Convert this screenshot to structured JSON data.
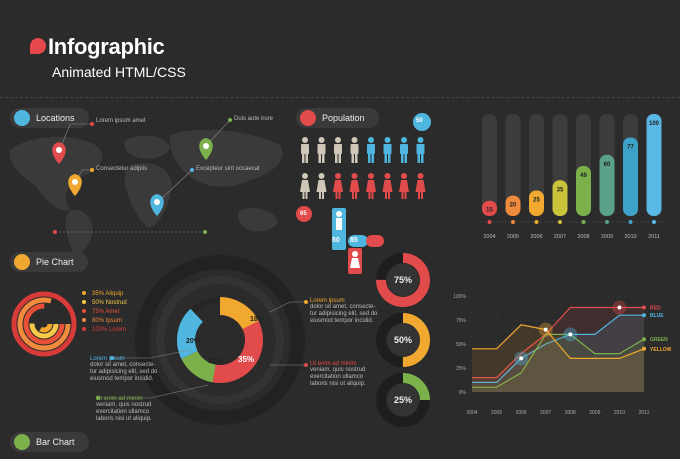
{
  "header": {
    "title": "Infographic",
    "subtitle": "Animated HTML/CSS"
  },
  "sections": {
    "locations": "Locations",
    "population": "Population",
    "pie_chart": "Pie Chart",
    "bar_chart": "Bar Chart"
  },
  "locations": {
    "loc1": "Lorem ipsum amet",
    "loc2": "Duis aute irure",
    "loc3": "Consectetur adipiis",
    "loc4": "Excepteur sint occaecat"
  },
  "population": {
    "badge_top": "50",
    "badge_left": "65",
    "male_pct": "50",
    "female_pct": "85"
  },
  "pie_legend": [
    {
      "label": "35% Aliquip",
      "color": "#f4a62a"
    },
    {
      "label": "50% Nostrud",
      "color": "#f7c948"
    },
    {
      "label": "75% Amet",
      "color": "#e8503a"
    },
    {
      "label": "80% Ipsum",
      "color": "#f08a3c"
    },
    {
      "label": "100% Lorem",
      "color": "#d83a3a"
    }
  ],
  "donut": {
    "seg_yellow": "18%",
    "seg_red": "35%",
    "seg_green": "15%",
    "seg_blue": "20%",
    "ann_top": {
      "head": "Lorem ipsum",
      "body": [
        "dolor sit amet, consecte-",
        "tur adipisicing elit, sed do",
        "eiusmod tempor incidid."
      ]
    },
    "ann_left": {
      "head": "Lorem ipsum",
      "body": [
        "dolor sit amet, consecte-",
        "tur adipisicing elit, sed do",
        "eiusmod tempor incidid."
      ]
    },
    "ann_right": {
      "head": "Ut enim ad minim",
      "body": [
        "veniam, quis nostrud",
        "exercitation ullamco",
        "laboris nisi ut aliquip."
      ]
    },
    "ann_bottom": {
      "head": "Ut enim ad minim",
      "body": [
        "veniam, quis nostrud",
        "exercitation ullamco",
        "laboris nisi ut aliquip."
      ]
    }
  },
  "rings": [
    {
      "value": 75,
      "label": "75%",
      "color": "#e24b4b"
    },
    {
      "value": 50,
      "label": "50%",
      "color": "#f0a830"
    },
    {
      "value": 25,
      "label": "25%",
      "color": "#7bb04a"
    }
  ],
  "chart_data": [
    {
      "type": "bar",
      "categories": [
        "2004",
        "2005",
        "2006",
        "2007",
        "2008",
        "2009",
        "2010",
        "2011"
      ],
      "values": [
        15,
        20,
        25,
        35,
        49,
        60,
        77,
        100
      ],
      "ylim": [
        0,
        100
      ],
      "colors": [
        "#e24b4b",
        "#f08a3c",
        "#f0a830",
        "#c9c43a",
        "#7bb04a",
        "#5aa08a",
        "#3ea2c8",
        "#5ab8e6"
      ]
    },
    {
      "type": "line",
      "x": [
        "2004",
        "2005",
        "2006",
        "2007",
        "2008",
        "2009",
        "2010",
        "2011"
      ],
      "yticks": [
        "0%",
        "25%",
        "50%",
        "75%",
        "100%"
      ],
      "ylim": [
        0,
        100
      ],
      "series": [
        {
          "name": "RED",
          "color": "#e24b4b",
          "values": [
            15,
            15,
            40,
            60,
            88,
            88,
            88,
            88
          ]
        },
        {
          "name": "BLUE",
          "color": "#4fb6e0",
          "values": [
            10,
            10,
            35,
            50,
            60,
            60,
            80,
            80
          ]
        },
        {
          "name": "GREEN",
          "color": "#7bb04a",
          "values": [
            5,
            5,
            20,
            60,
            60,
            40,
            40,
            55
          ]
        },
        {
          "name": "YELLOW",
          "color": "#f0a830",
          "values": [
            45,
            45,
            70,
            65,
            35,
            35,
            35,
            45
          ]
        }
      ]
    }
  ]
}
